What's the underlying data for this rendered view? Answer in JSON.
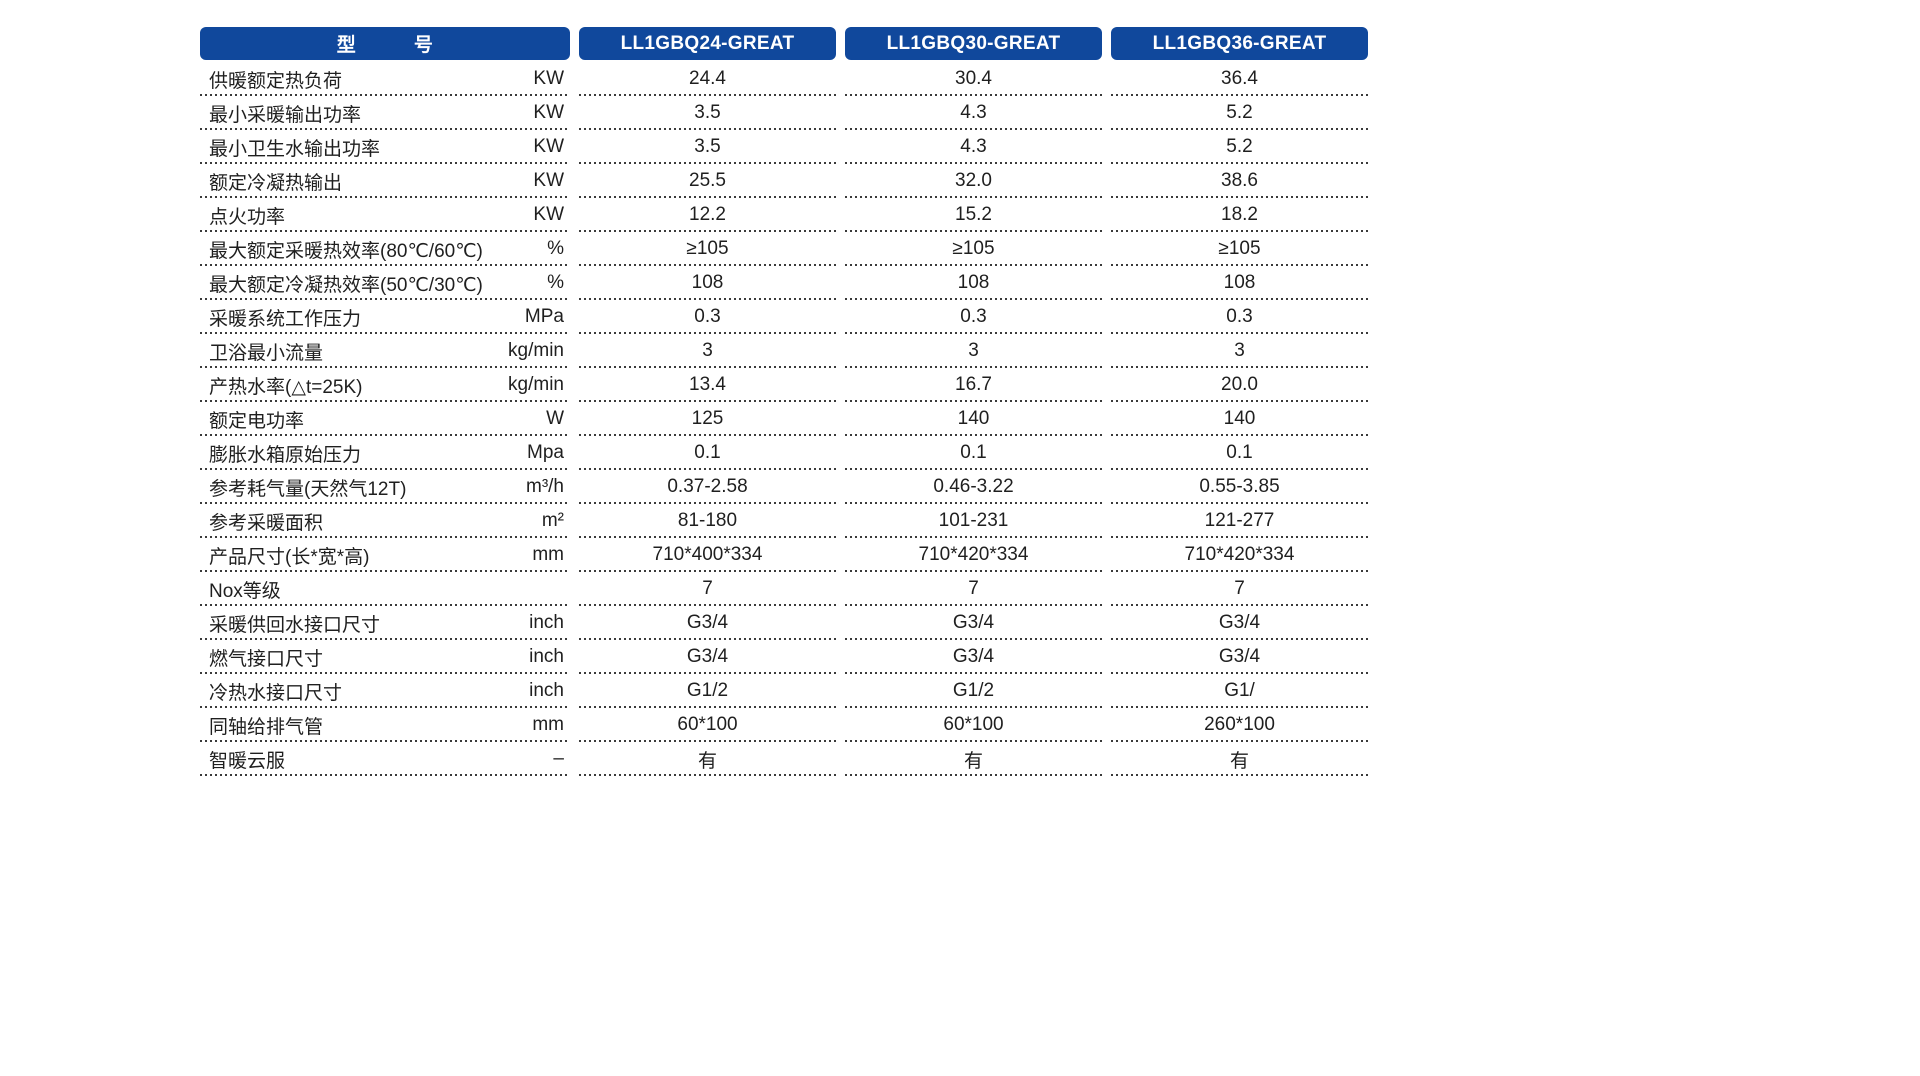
{
  "table": {
    "header": {
      "model_label": "型　　　号",
      "models": [
        "LL1GBQ24-GREAT",
        "LL1GBQ30-GREAT",
        "LL1GBQ36-GREAT"
      ]
    },
    "rows": [
      {
        "label": "供暖额定热负荷",
        "unit": "KW",
        "values": [
          "24.4",
          "30.4",
          "36.4"
        ]
      },
      {
        "label": "最小采暖输出功率",
        "unit": "KW",
        "values": [
          "3.5",
          "4.3",
          "5.2"
        ]
      },
      {
        "label": "最小卫生水输出功率",
        "unit": "KW",
        "values": [
          "3.5",
          "4.3",
          "5.2"
        ]
      },
      {
        "label": "额定冷凝热输出",
        "unit": "KW",
        "values": [
          "25.5",
          "32.0",
          "38.6"
        ]
      },
      {
        "label": "点火功率",
        "unit": "KW",
        "values": [
          "12.2",
          "15.2",
          "18.2"
        ]
      },
      {
        "label": "最大额定采暖热效率(80℃/60℃)",
        "unit": "%",
        "values": [
          "≥105",
          "≥105",
          "≥105"
        ]
      },
      {
        "label": "最大额定冷凝热效率(50℃/30℃)",
        "unit": "%",
        "values": [
          "108",
          "108",
          "108"
        ]
      },
      {
        "label": "采暖系统工作压力",
        "unit": "MPa",
        "values": [
          "0.3",
          "0.3",
          "0.3"
        ]
      },
      {
        "label": "卫浴最小流量",
        "unit": "kg/min",
        "values": [
          "3",
          "3",
          "3"
        ]
      },
      {
        "label": "产热水率(△t=25K)",
        "unit": "kg/min",
        "values": [
          "13.4",
          "16.7",
          "20.0"
        ]
      },
      {
        "label": "额定电功率",
        "unit": "W",
        "values": [
          "125",
          "140",
          "140"
        ]
      },
      {
        "label": "膨胀水箱原始压力",
        "unit": "Mpa",
        "values": [
          "0.1",
          "0.1",
          "0.1"
        ]
      },
      {
        "label": "参考耗气量(天然气12T)",
        "unit": "m³/h",
        "values": [
          "0.37-2.58",
          "0.46-3.22",
          "0.55-3.85"
        ]
      },
      {
        "label": "参考采暖面积",
        "unit": "m²",
        "values": [
          "81-180",
          "101-231",
          "121-277"
        ]
      },
      {
        "label": "产品尺寸(长*宽*高)",
        "unit": "mm",
        "values": [
          "710*400*334",
          "710*420*334",
          "710*420*334"
        ]
      },
      {
        "label": "Nox等级",
        "unit": "",
        "values": [
          "7",
          "7",
          "7"
        ]
      },
      {
        "label": "采暖供回水接口尺寸",
        "unit": "inch",
        "values": [
          "G3/4",
          "G3/4",
          "G3/4"
        ]
      },
      {
        "label": "燃气接口尺寸",
        "unit": "inch",
        "values": [
          "G3/4",
          "G3/4",
          "G3/4"
        ]
      },
      {
        "label": "冷热水接口尺寸",
        "unit": "inch",
        "values": [
          "G1/2",
          "G1/2",
          "G1/"
        ]
      },
      {
        "label": "同轴给排气管",
        "unit": "mm",
        "values": [
          "60*100",
          "60*100",
          "260*100"
        ]
      },
      {
        "label": "智暖云服",
        "unit": "–",
        "values": [
          "有",
          "有",
          "有"
        ]
      }
    ],
    "colors": {
      "header_bg": "#10489c",
      "header_text": "#ffffff",
      "body_text": "#1f1f1f",
      "dotted_line": "#3a3a3a"
    }
  }
}
